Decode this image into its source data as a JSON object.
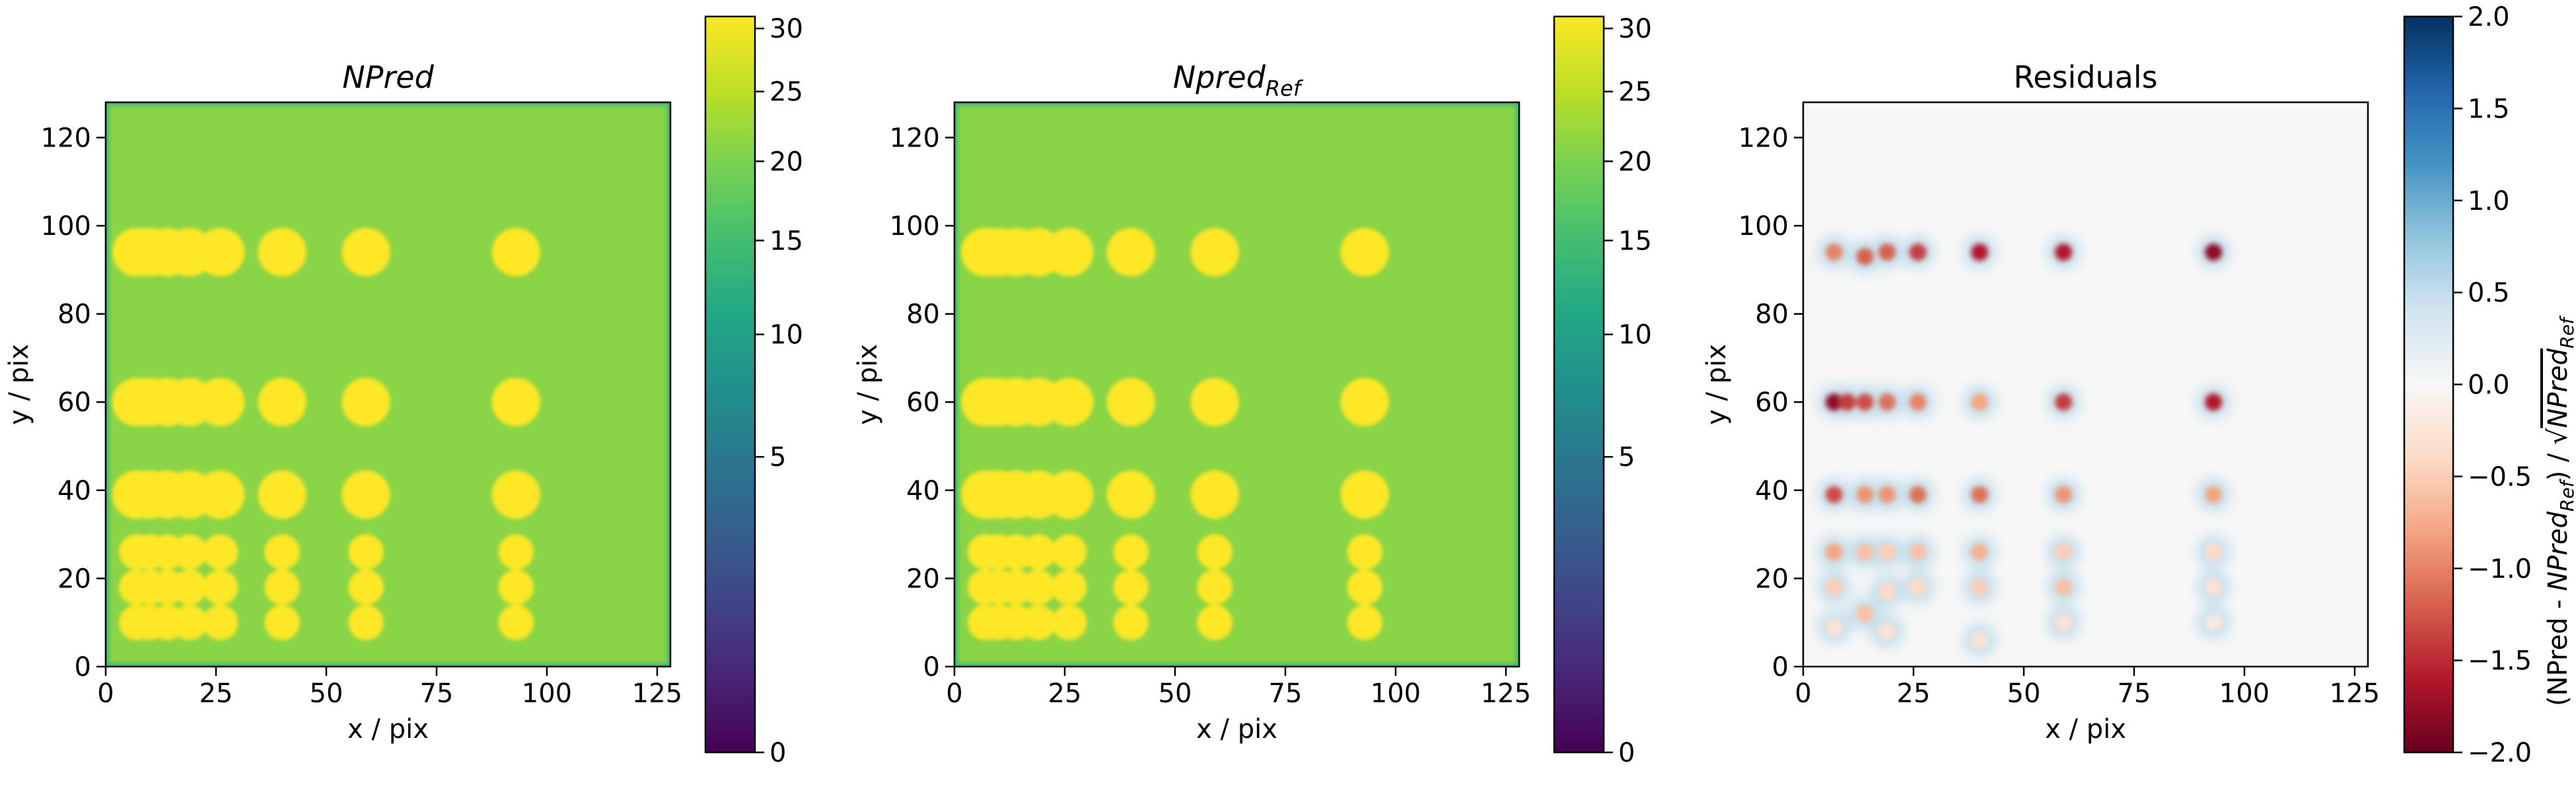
{
  "chart_data": [
    {
      "type": "heatmap",
      "title": "NPred",
      "title_style": "italic",
      "xlabel": "x / pix",
      "ylabel": "y / pix",
      "xlim": [
        0,
        128
      ],
      "ylim": [
        0,
        128
      ],
      "xticks": [
        0,
        25,
        50,
        75,
        100,
        125
      ],
      "yticks": [
        0,
        20,
        40,
        60,
        80,
        100,
        120
      ],
      "colormap": "viridis",
      "colorbar": {
        "scale": "sqrt",
        "range": [
          0,
          31
        ],
        "ticks": [
          0,
          5,
          10,
          15,
          20,
          25,
          30
        ],
        "label": ""
      },
      "background_value": 21,
      "source_rows_y": [
        94,
        60,
        39,
        26,
        18,
        10
      ],
      "source_cols_x": [
        7,
        10,
        14,
        19,
        26,
        40,
        59,
        93
      ],
      "source_peak_value": 31,
      "grid": false
    },
    {
      "type": "heatmap",
      "title": "Npred",
      "title_subscript": "Ref",
      "title_style": "italic",
      "xlabel": "x / pix",
      "ylabel": "y / pix",
      "xlim": [
        0,
        128
      ],
      "ylim": [
        0,
        128
      ],
      "xticks": [
        0,
        25,
        50,
        75,
        100,
        125
      ],
      "yticks": [
        0,
        20,
        40,
        60,
        80,
        100,
        120
      ],
      "colormap": "viridis",
      "colorbar": {
        "scale": "sqrt",
        "range": [
          0,
          31
        ],
        "ticks": [
          0,
          5,
          10,
          15,
          20,
          25,
          30
        ],
        "label": ""
      },
      "background_value": 21,
      "source_rows_y": [
        94,
        60,
        39,
        26,
        18,
        10
      ],
      "source_cols_x": [
        7,
        10,
        14,
        19,
        26,
        40,
        59,
        93
      ],
      "source_peak_value": 31,
      "grid": false
    },
    {
      "type": "heatmap",
      "title": "Residuals",
      "xlabel": "x / pix",
      "ylabel": "y / pix",
      "xlim": [
        0,
        128
      ],
      "ylim": [
        0,
        128
      ],
      "xticks": [
        0,
        25,
        50,
        75,
        100,
        125
      ],
      "yticks": [
        0,
        20,
        40,
        60,
        80,
        100,
        120
      ],
      "colormap": "RdBu",
      "colorbar": {
        "scale": "linear",
        "range": [
          -2.0,
          2.0
        ],
        "ticks": [
          -2.0,
          -1.5,
          -1.0,
          -0.5,
          0.0,
          0.5,
          1.0,
          1.5,
          2.0
        ],
        "tick_labels": [
          "−2.0",
          "−1.5",
          "−1.0",
          "−0.5",
          "0.0",
          "0.5",
          "1.0",
          "1.5",
          "2.0"
        ],
        "label_part1": "(NPred - ",
        "label_main2": "NPred",
        "label_sub2": "Ref",
        "label_part3": ") / √",
        "label_main4": "NPred",
        "label_sub4": "Ref"
      },
      "residual_points": [
        {
          "x": 7,
          "y": 94,
          "v": -1.0
        },
        {
          "x": 14,
          "y": 93,
          "v": -1.2
        },
        {
          "x": 19,
          "y": 94,
          "v": -1.2
        },
        {
          "x": 26,
          "y": 94,
          "v": -1.4
        },
        {
          "x": 40,
          "y": 94,
          "v": -1.6
        },
        {
          "x": 59,
          "y": 94,
          "v": -1.6
        },
        {
          "x": 93,
          "y": 94,
          "v": -1.8
        },
        {
          "x": 7,
          "y": 60,
          "v": -1.8
        },
        {
          "x": 10,
          "y": 60,
          "v": -1.4
        },
        {
          "x": 14,
          "y": 60,
          "v": -1.3
        },
        {
          "x": 19,
          "y": 60,
          "v": -1.1
        },
        {
          "x": 26,
          "y": 60,
          "v": -1.0
        },
        {
          "x": 40,
          "y": 60,
          "v": -0.8
        },
        {
          "x": 59,
          "y": 60,
          "v": -1.4
        },
        {
          "x": 93,
          "y": 60,
          "v": -1.6
        },
        {
          "x": 7,
          "y": 39,
          "v": -1.3
        },
        {
          "x": 14,
          "y": 39,
          "v": -0.9
        },
        {
          "x": 19,
          "y": 39,
          "v": -0.9
        },
        {
          "x": 26,
          "y": 39,
          "v": -1.1
        },
        {
          "x": 40,
          "y": 39,
          "v": -1.1
        },
        {
          "x": 59,
          "y": 39,
          "v": -0.9
        },
        {
          "x": 93,
          "y": 39,
          "v": -0.8
        },
        {
          "x": 7,
          "y": 26,
          "v": -0.8
        },
        {
          "x": 14,
          "y": 26,
          "v": -0.6
        },
        {
          "x": 19,
          "y": 26,
          "v": -0.5
        },
        {
          "x": 26,
          "y": 26,
          "v": -0.6
        },
        {
          "x": 40,
          "y": 26,
          "v": -0.7
        },
        {
          "x": 59,
          "y": 26,
          "v": -0.5
        },
        {
          "x": 93,
          "y": 26,
          "v": -0.4
        },
        {
          "x": 7,
          "y": 18,
          "v": -0.5
        },
        {
          "x": 14,
          "y": 12,
          "v": -0.6
        },
        {
          "x": 19,
          "y": 17,
          "v": -0.4
        },
        {
          "x": 26,
          "y": 18,
          "v": -0.4
        },
        {
          "x": 40,
          "y": 18,
          "v": -0.5
        },
        {
          "x": 59,
          "y": 18,
          "v": -0.6
        },
        {
          "x": 93,
          "y": 18,
          "v": -0.3
        },
        {
          "x": 7,
          "y": 9,
          "v": -0.3
        },
        {
          "x": 19,
          "y": 8,
          "v": -0.3
        },
        {
          "x": 40,
          "y": 6,
          "v": -0.3
        },
        {
          "x": 59,
          "y": 10,
          "v": -0.3
        },
        {
          "x": 93,
          "y": 10,
          "v": -0.2
        }
      ],
      "grid": false
    }
  ]
}
